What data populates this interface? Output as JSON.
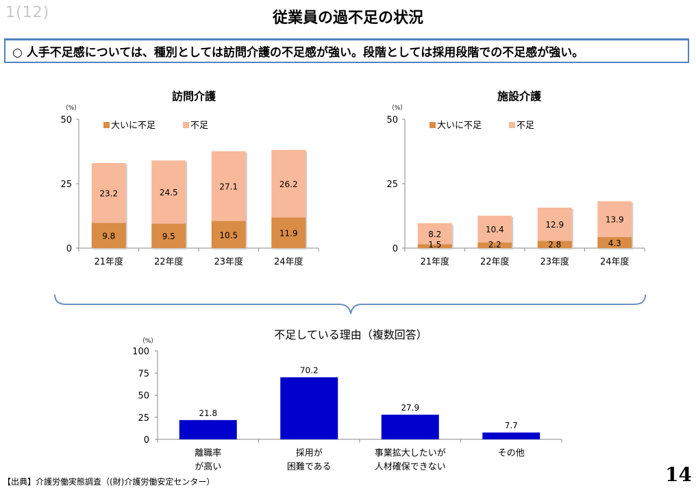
{
  "slide_number": "1(12)",
  "title": "従業員の過不足の状況",
  "summary": "○ 人手不足感については、種別としては訪問介護の不足感が強い。段階としては採用段階での不足感が強い。",
  "source": "【出典】介護労働実態調査（(財)介護労働安定センター）",
  "page_number": "14",
  "colors": {
    "severe": "#d98c45",
    "shortage": "#f7b99a",
    "reason_bar": "#0000cc",
    "rule": "#4f81bd"
  },
  "chart_data": [
    {
      "type": "bar",
      "stacked": true,
      "title": "訪問介護",
      "unit": "（%）",
      "categories": [
        "21年度",
        "22年度",
        "23年度",
        "24年度"
      ],
      "series": [
        {
          "name": "大いに不足",
          "values": [
            9.8,
            9.5,
            10.5,
            11.9
          ]
        },
        {
          "name": "不足",
          "values": [
            23.2,
            24.5,
            27.1,
            26.2
          ]
        }
      ],
      "ylim": [
        0,
        50
      ],
      "yticks": [
        0,
        25,
        50
      ],
      "legend": "top"
    },
    {
      "type": "bar",
      "stacked": true,
      "title": "施設介護",
      "unit": "（%）",
      "categories": [
        "21年度",
        "22年度",
        "23年度",
        "24年度"
      ],
      "series": [
        {
          "name": "大いに不足",
          "values": [
            1.5,
            2.2,
            2.8,
            4.3
          ]
        },
        {
          "name": "不足",
          "values": [
            8.2,
            10.4,
            12.9,
            13.9
          ]
        }
      ],
      "ylim": [
        0,
        50
      ],
      "yticks": [
        0,
        25,
        50
      ],
      "legend": "top"
    },
    {
      "type": "bar",
      "title": "不足している理由（複数回答）",
      "unit": "（%）",
      "categories": [
        [
          "離職率",
          "が高い"
        ],
        [
          "採用が",
          "困難である"
        ],
        [
          "事業拡大したいが",
          "人材確保できない"
        ],
        [
          "その他"
        ]
      ],
      "values": [
        21.8,
        70.2,
        27.9,
        7.7
      ],
      "ylim": [
        0,
        100
      ],
      "yticks": [
        0,
        25,
        50,
        75,
        100
      ]
    }
  ]
}
